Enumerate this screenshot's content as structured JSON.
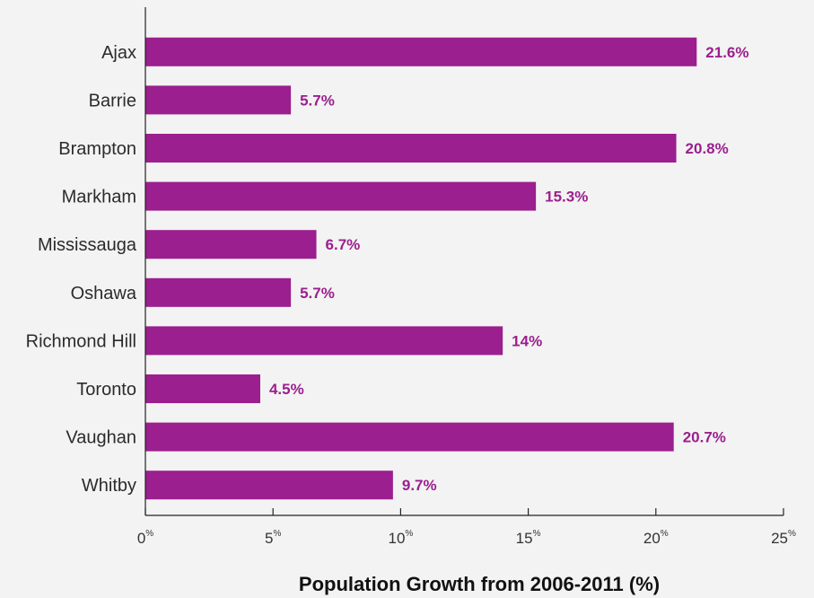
{
  "chart_data": {
    "type": "bar",
    "orientation": "horizontal",
    "categories": [
      "Ajax",
      "Barrie",
      "Brampton",
      "Markham",
      "Mississauga",
      "Oshawa",
      "Richmond Hill",
      "Toronto",
      "Vaughan",
      "Whitby"
    ],
    "values": [
      21.6,
      5.7,
      20.8,
      15.3,
      6.7,
      5.7,
      14,
      4.5,
      20.7,
      9.7
    ],
    "value_labels": [
      "21.6%",
      "5.7%",
      "20.8%",
      "15.3%",
      "6.7%",
      "5.7%",
      "14%",
      "4.5%",
      "20.7%",
      "9.7%"
    ],
    "x_ticks": [
      0,
      5,
      10,
      15,
      20,
      25
    ],
    "x_tick_unit": "%",
    "xlim": [
      0,
      25
    ],
    "xlabel": "Population Growth from 2006-2011 (%)",
    "ylabel": "",
    "title": "",
    "grid": false,
    "bar_color": "#9b1f8e",
    "label_color": "#9b1f8e",
    "axis_color": "#222222"
  }
}
